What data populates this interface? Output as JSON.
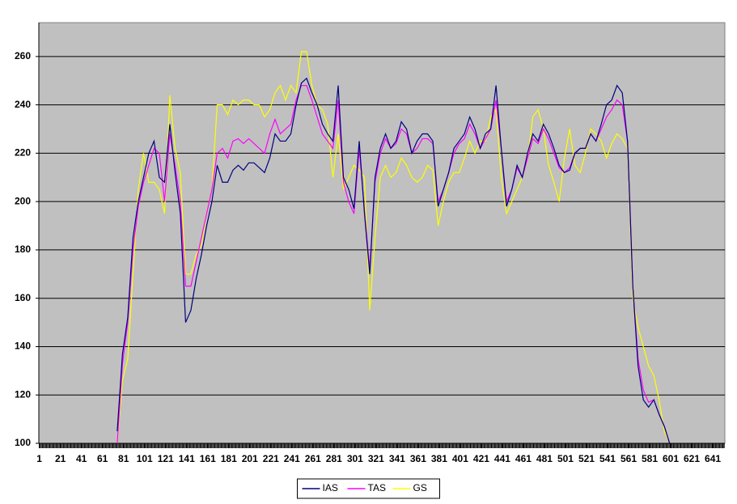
{
  "chart_data": {
    "type": "line",
    "x": [
      75,
      80,
      85,
      90,
      95,
      100,
      105,
      110,
      115,
      120,
      125,
      130,
      135,
      140,
      145,
      150,
      155,
      160,
      165,
      170,
      175,
      180,
      185,
      190,
      195,
      200,
      205,
      210,
      215,
      220,
      225,
      230,
      235,
      240,
      245,
      250,
      255,
      260,
      265,
      270,
      275,
      280,
      285,
      290,
      295,
      300,
      305,
      310,
      315,
      320,
      325,
      330,
      335,
      340,
      345,
      350,
      355,
      360,
      365,
      370,
      375,
      380,
      385,
      390,
      395,
      400,
      405,
      410,
      415,
      420,
      425,
      430,
      435,
      440,
      445,
      450,
      455,
      460,
      465,
      470,
      475,
      480,
      485,
      490,
      495,
      500,
      505,
      510,
      515,
      520,
      525,
      530,
      535,
      540,
      545,
      550,
      555,
      560,
      565,
      570,
      575,
      580,
      585,
      590,
      595,
      600
    ],
    "series": [
      {
        "name": "IAS",
        "color": "#000080",
        "values": [
          105,
          137,
          152,
          185,
          200,
          210,
          220,
          225,
          210,
          208,
          232,
          212,
          195,
          150,
          155,
          168,
          178,
          190,
          200,
          215,
          208,
          208,
          213,
          215,
          213,
          216,
          216,
          214,
          212,
          218,
          228,
          225,
          225,
          228,
          240,
          249,
          251,
          245,
          240,
          232,
          228,
          225,
          248,
          210,
          205,
          197,
          225,
          195,
          170,
          210,
          222,
          228,
          222,
          225,
          233,
          230,
          220,
          225,
          228,
          228,
          225,
          198,
          205,
          212,
          222,
          225,
          228,
          235,
          230,
          222,
          228,
          230,
          248,
          222,
          198,
          205,
          215,
          210,
          220,
          228,
          225,
          232,
          228,
          222,
          215,
          212,
          213,
          220,
          222,
          222,
          228,
          225,
          232,
          240,
          242,
          248,
          245,
          225,
          165,
          132,
          118,
          115,
          118,
          112,
          107,
          100
        ]
      },
      {
        "name": "TAS",
        "color": "#ff00ff",
        "values": [
          100,
          133,
          150,
          180,
          198,
          208,
          215,
          222,
          220,
          200,
          228,
          215,
          200,
          165,
          165,
          175,
          185,
          195,
          205,
          220,
          222,
          218,
          225,
          226,
          224,
          226,
          224,
          222,
          220,
          228,
          234,
          228,
          230,
          232,
          242,
          248,
          248,
          242,
          235,
          228,
          225,
          222,
          242,
          208,
          200,
          195,
          222,
          196,
          172,
          208,
          220,
          226,
          222,
          224,
          230,
          228,
          220,
          222,
          226,
          226,
          224,
          200,
          205,
          212,
          220,
          224,
          226,
          232,
          228,
          222,
          226,
          230,
          242,
          222,
          200,
          205,
          214,
          210,
          218,
          226,
          224,
          230,
          226,
          220,
          214,
          212,
          214,
          220,
          222,
          222,
          228,
          225,
          230,
          235,
          238,
          242,
          240,
          225,
          165,
          135,
          122,
          117,
          118,
          112,
          107,
          100
        ]
      },
      {
        "name": "GS",
        "color": "#ffff00",
        "values": [
          100,
          126,
          135,
          170,
          205,
          220,
          208,
          208,
          205,
          195,
          244,
          222,
          212,
          170,
          170,
          178,
          182,
          195,
          205,
          240,
          240,
          236,
          242,
          240,
          242,
          242,
          240,
          240,
          235,
          238,
          245,
          248,
          242,
          248,
          245,
          262,
          262,
          248,
          240,
          238,
          232,
          210,
          228,
          205,
          210,
          215,
          213,
          210,
          155,
          185,
          210,
          215,
          210,
          212,
          218,
          215,
          210,
          208,
          210,
          215,
          213,
          190,
          200,
          208,
          212,
          212,
          218,
          225,
          220,
          225,
          225,
          235,
          238,
          210,
          195,
          200,
          205,
          210,
          218,
          235,
          238,
          230,
          215,
          208,
          200,
          218,
          230,
          215,
          212,
          220,
          230,
          228,
          225,
          218,
          224,
          228,
          226,
          222,
          160,
          148,
          140,
          132,
          128,
          118,
          105,
          100
        ]
      }
    ],
    "xlim": [
      0.5,
      652.5
    ],
    "xticks": [
      1,
      21,
      41,
      61,
      81,
      101,
      121,
      141,
      161,
      181,
      201,
      221,
      241,
      261,
      281,
      301,
      321,
      341,
      361,
      381,
      401,
      421,
      441,
      461,
      481,
      501,
      521,
      541,
      561,
      581,
      601,
      621,
      641
    ],
    "ylim": [
      100,
      274
    ],
    "yticks": [
      100,
      120,
      140,
      160,
      180,
      200,
      220,
      240,
      260
    ],
    "grid": true,
    "legend": "bottom"
  }
}
